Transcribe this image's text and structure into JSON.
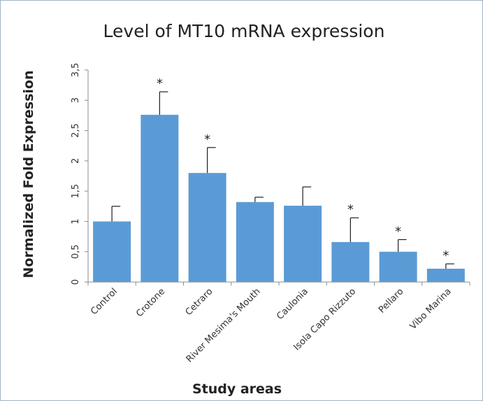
{
  "chart_data": {
    "type": "bar",
    "title": "Level of MT10 mRNA expression",
    "xlabel": "Study areas",
    "ylabel": "Normalized Fold Expression",
    "ylim": [
      0,
      3.5
    ],
    "yticks": [
      0,
      0.5,
      1,
      1.5,
      2,
      2.5,
      3,
      3.5
    ],
    "ytick_labels": [
      "0",
      "0,5",
      "1",
      "1,5",
      "2",
      "2,5",
      "3",
      "3,5"
    ],
    "categories": [
      "Control",
      "Crotone",
      "Cetraro",
      "River Mesima's Mouth",
      "Caulonia",
      "Isola Capo Rizzuto",
      "Pellaro",
      "Vibo Marina"
    ],
    "values": [
      1.0,
      2.76,
      1.8,
      1.32,
      1.26,
      0.66,
      0.5,
      0.22
    ],
    "error_upper": [
      0.25,
      0.38,
      0.42,
      0.08,
      0.31,
      0.4,
      0.2,
      0.08
    ],
    "significance": [
      "",
      "*",
      "*",
      "",
      "",
      "*",
      "*",
      "*"
    ],
    "bar_color": "#5b9bd5",
    "grid": false,
    "legend": "none"
  }
}
